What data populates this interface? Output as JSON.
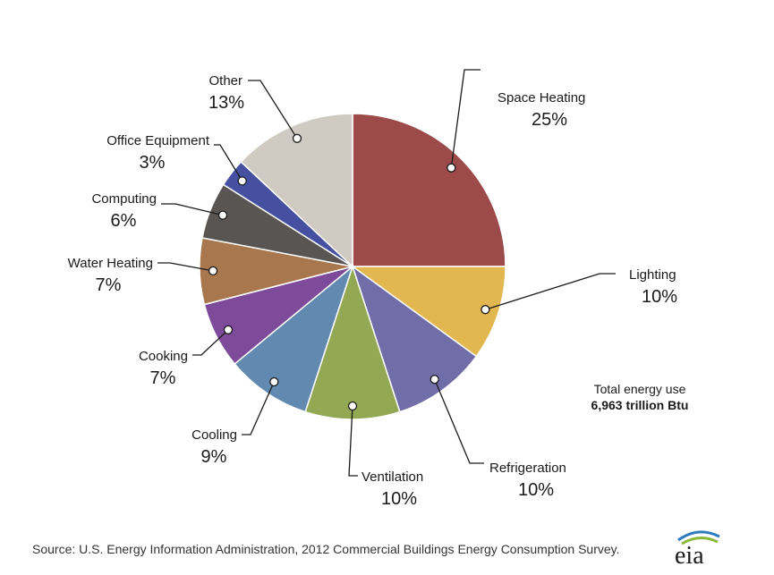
{
  "chart_data": {
    "type": "pie",
    "slices": [
      {
        "label": "Space Heating",
        "value": 25,
        "pct_label": "25%",
        "color": "#9C4A4A"
      },
      {
        "label": "Lighting",
        "value": 10,
        "pct_label": "10%",
        "color": "#E3B74F"
      },
      {
        "label": "Refrigeration",
        "value": 10,
        "pct_label": "10%",
        "color": "#716DA8"
      },
      {
        "label": "Ventilation",
        "value": 10,
        "pct_label": "10%",
        "color": "#93A853"
      },
      {
        "label": "Cooling",
        "value": 9,
        "pct_label": "9%",
        "color": "#628AB0"
      },
      {
        "label": "Cooking",
        "value": 7,
        "pct_label": "7%",
        "color": "#7E4B9A"
      },
      {
        "label": "Water Heating",
        "value": 7,
        "pct_label": "7%",
        "color": "#A8774E"
      },
      {
        "label": "Computing",
        "value": 6,
        "pct_label": "6%",
        "color": "#595553"
      },
      {
        "label": "Office Equipment",
        "value": 3,
        "pct_label": "3%",
        "color": "#4550A1"
      },
      {
        "label": "Other",
        "value": 13,
        "pct_label": "13%",
        "color": "#D0CBC2"
      }
    ]
  },
  "total": {
    "label": "Total energy use",
    "value": "6,963 trillion Btu"
  },
  "source": "Source: U.S. Energy Information Administration, 2012 Commercial Buildings Energy Consumption Survey.",
  "logo_text": "eia"
}
